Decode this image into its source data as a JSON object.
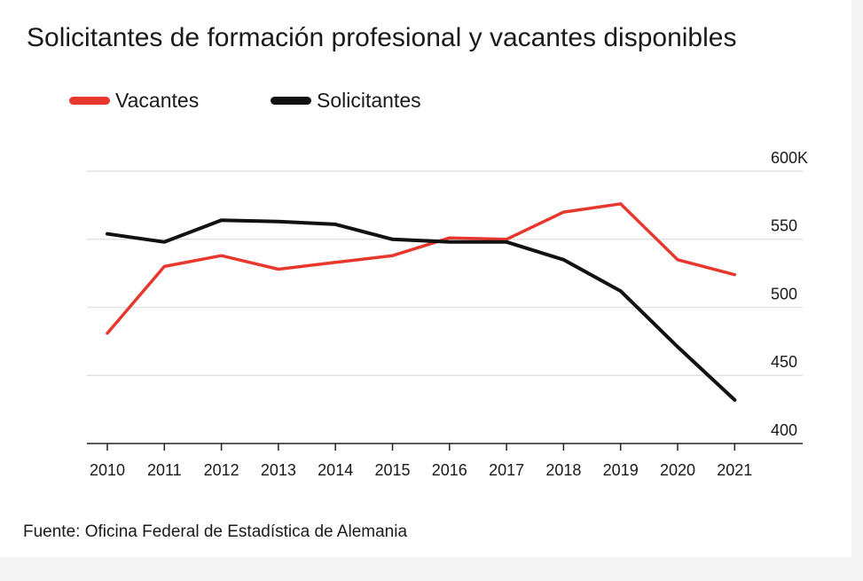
{
  "chart_data": {
    "type": "line",
    "title": "Solicitantes de formación profesional y vacantes disponibles",
    "x": [
      "2010",
      "2011",
      "2012",
      "2013",
      "2014",
      "2015",
      "2016",
      "2017",
      "2018",
      "2019",
      "2020",
      "2021"
    ],
    "y_tick_labels": [
      "600K",
      "550",
      "500",
      "450",
      "400"
    ],
    "y_ticks": [
      600,
      550,
      500,
      450,
      400
    ],
    "ylim": [
      400,
      600
    ],
    "grid": true,
    "legend_position": "top-left",
    "series": [
      {
        "name": "Vacantes",
        "color": "#e8372c",
        "values": [
          481,
          530,
          538,
          528,
          533,
          538,
          551,
          550,
          570,
          576,
          535,
          524
        ]
      },
      {
        "name": "Solicitantes",
        "color": "#111111",
        "values": [
          554,
          548,
          564,
          563,
          561,
          550,
          548,
          548,
          535,
          512,
          471,
          432
        ]
      }
    ],
    "source": "Fuente: Oficina Federal de Estadística de Alemania"
  }
}
